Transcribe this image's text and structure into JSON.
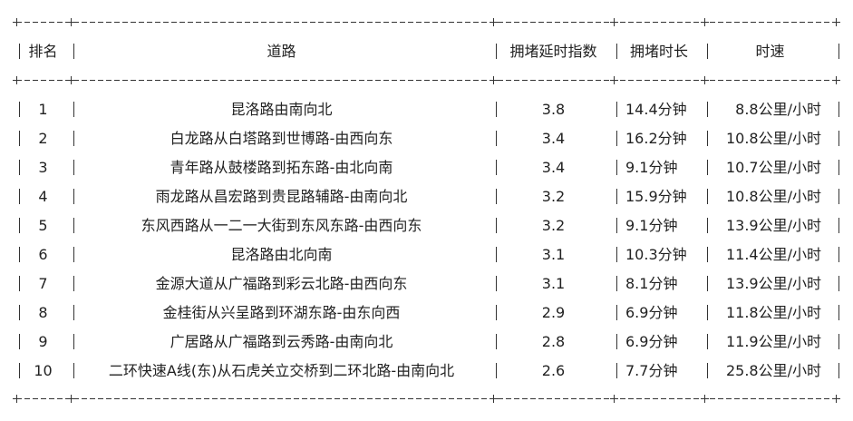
{
  "table": {
    "headers": {
      "rank": "排名",
      "road": "道路",
      "index": "拥堵延时指数",
      "duration": "拥堵时长",
      "speed": "时速"
    },
    "rows": [
      {
        "rank": "1",
        "road": "昆洛路由南向北",
        "index": "3.8",
        "duration": "14.4分钟",
        "speed": "8.8公里/小时"
      },
      {
        "rank": "2",
        "road": "白龙路从白塔路到世博路-由西向东",
        "index": "3.4",
        "duration": "16.2分钟",
        "speed": "10.8公里/小时"
      },
      {
        "rank": "3",
        "road": "青年路从鼓楼路到拓东路-由北向南",
        "index": "3.4",
        "duration": "9.1分钟",
        "speed": "10.7公里/小时"
      },
      {
        "rank": "4",
        "road": "雨龙路从昌宏路到贵昆路辅路-由南向北",
        "index": "3.2",
        "duration": "15.9分钟",
        "speed": "10.8公里/小时"
      },
      {
        "rank": "5",
        "road": "东风西路从一二一大街到东风东路-由西向东",
        "index": "3.2",
        "duration": "9.1分钟",
        "speed": "13.9公里/小时"
      },
      {
        "rank": "6",
        "road": "昆洛路由北向南",
        "index": "3.1",
        "duration": "10.3分钟",
        "speed": "11.4公里/小时"
      },
      {
        "rank": "7",
        "road": "金源大道从广福路到彩云北路-由西向东",
        "index": "3.1",
        "duration": "8.1分钟",
        "speed": "13.9公里/小时"
      },
      {
        "rank": "8",
        "road": "金桂街从兴呈路到环湖东路-由东向西",
        "index": "2.9",
        "duration": "6.9分钟",
        "speed": "11.8公里/小时"
      },
      {
        "rank": "9",
        "road": "广居路从广福路到云秀路-由南向北",
        "index": "2.8",
        "duration": "6.9分钟",
        "speed": "11.9公里/小时"
      },
      {
        "rank": "10",
        "road": "二环快速A线(东)从石虎关立交桥到二环北路-由南向北",
        "index": "2.6",
        "duration": "7.7分钟",
        "speed": "25.8公里/小时"
      }
    ]
  }
}
